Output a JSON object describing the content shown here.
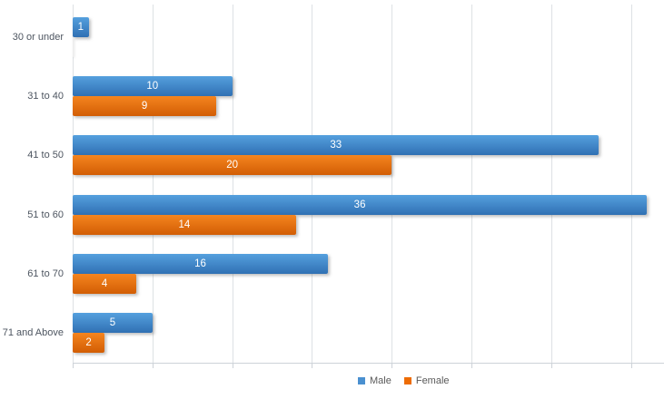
{
  "chart_data": {
    "type": "bar",
    "orientation": "horizontal",
    "title": "",
    "xlabel": "",
    "ylabel": "",
    "grid": true,
    "gridline_step": 5,
    "xlim": [
      0,
      37
    ],
    "legend_position": "bottom-center",
    "data_labels": "inside-center-white",
    "categories": [
      "30 or under",
      "31 to 40",
      "41 to 50",
      "51 to 60",
      "61 to 70",
      "71 and Above"
    ],
    "series": [
      {
        "name": "Male",
        "values": [
          1,
          10,
          33,
          36,
          16,
          5
        ],
        "color_top": "#55a0de",
        "color_bottom": "#3070b3",
        "legend_color": "#4a90d0"
      },
      {
        "name": "Female",
        "values": [
          0,
          9,
          20,
          14,
          4,
          2
        ],
        "color_top": "#f5851f",
        "color_bottom": "#d25d04",
        "legend_color": "#ed6c05"
      }
    ]
  },
  "colors": {
    "gridline": "#dde1e4",
    "axis_line": "#cdd2d8",
    "category_label": "#4d5560",
    "legend_text": "#595959",
    "bar_label": "#ffffff",
    "background": "#ffffff"
  }
}
